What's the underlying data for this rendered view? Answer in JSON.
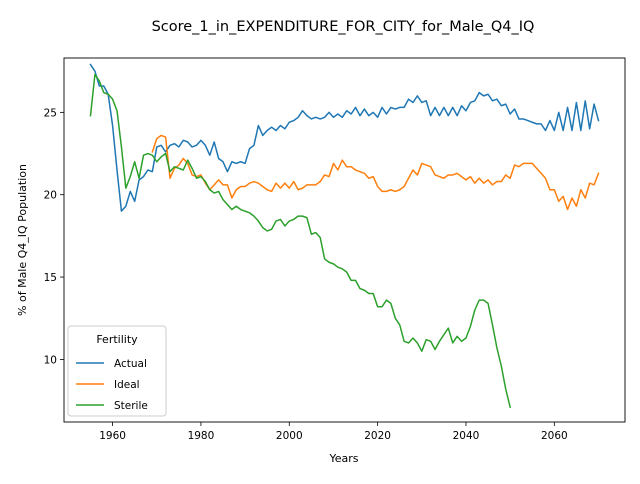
{
  "chart_data": {
    "type": "line",
    "title": "Score_1_in_EXPENDITURE_FOR_CITY_for_Male_Q4_IQ",
    "xlabel": "Years",
    "ylabel": "% of Male Q4_IQ Population",
    "xlim": [
      1949,
      2076
    ],
    "ylim": [
      6.2,
      28.3
    ],
    "xticks": [
      1960,
      1980,
      2000,
      2020,
      2040,
      2060
    ],
    "yticks": [
      10,
      15,
      20,
      25
    ],
    "grid": false,
    "legend": {
      "title": "Fertility",
      "placement": "lower-left"
    },
    "series": [
      {
        "name": "Actual",
        "color": "#1f77b4",
        "x": [
          1955,
          1956,
          1957,
          1958,
          1959,
          1960,
          1961,
          1962,
          1963,
          1964,
          1965,
          1966,
          1967,
          1968,
          1969,
          1970,
          1971,
          1972,
          1973,
          1974,
          1975,
          1976,
          1977,
          1978,
          1979,
          1980,
          1981,
          1982,
          1983,
          1984,
          1985,
          1986,
          1987,
          1988,
          1989,
          1990,
          1991,
          1992,
          1993,
          1994,
          1995,
          1996,
          1997,
          1998,
          1999,
          2000,
          2001,
          2002,
          2003,
          2004,
          2005,
          2006,
          2007,
          2008,
          2009,
          2010,
          2011,
          2012,
          2013,
          2014,
          2015,
          2016,
          2017,
          2018,
          2019,
          2020,
          2021,
          2022,
          2023,
          2024,
          2025,
          2026,
          2027,
          2028,
          2029,
          2030,
          2031,
          2032,
          2033,
          2034,
          2035,
          2036,
          2037,
          2038,
          2039,
          2040,
          2041,
          2042,
          2043,
          2044,
          2045,
          2046,
          2047,
          2048,
          2049,
          2050,
          2051,
          2052,
          2053,
          2054,
          2055,
          2056,
          2057,
          2058,
          2059,
          2060,
          2061,
          2062,
          2063,
          2064,
          2065,
          2066,
          2067,
          2068,
          2069,
          2070
        ],
        "y": [
          27.9,
          27.5,
          26.6,
          26.6,
          26.1,
          24.2,
          21.5,
          19.0,
          19.3,
          20.2,
          19.6,
          20.9,
          21.1,
          21.5,
          21.4,
          22.9,
          23.0,
          22.6,
          23.0,
          23.1,
          22.9,
          23.3,
          23.2,
          22.9,
          23.0,
          23.3,
          23.0,
          22.4,
          23.2,
          22.2,
          22.0,
          21.4,
          22.0,
          21.9,
          22.0,
          21.9,
          22.8,
          23.0,
          24.2,
          23.6,
          23.9,
          24.1,
          23.9,
          24.2,
          24.0,
          24.4,
          24.5,
          24.7,
          25.1,
          24.8,
          24.6,
          24.7,
          24.6,
          24.7,
          25.0,
          24.7,
          24.9,
          24.7,
          25.1,
          24.9,
          25.3,
          24.8,
          25.2,
          24.8,
          25.0,
          24.7,
          25.3,
          24.9,
          25.3,
          25.2,
          25.3,
          25.3,
          25.8,
          25.6,
          26.0,
          25.6,
          25.7,
          24.8,
          25.3,
          24.8,
          25.3,
          24.8,
          25.3,
          24.8,
          25.4,
          25.1,
          25.6,
          25.7,
          26.2,
          26.0,
          26.1,
          25.7,
          25.8,
          25.4,
          25.5,
          24.9,
          25.2,
          24.6,
          24.6,
          24.5,
          24.4,
          24.3,
          24.3,
          23.9,
          24.5,
          23.9,
          25.0,
          23.9,
          25.3,
          23.9,
          25.6,
          23.9,
          25.7,
          24.0,
          25.5,
          24.5
        ]
      },
      {
        "name": "Ideal",
        "color": "#ff7f0e",
        "x": [
          1969,
          1970,
          1971,
          1972,
          1973,
          1974,
          1975,
          1976,
          1977,
          1978,
          1979,
          1980,
          1981,
          1982,
          1983,
          1984,
          1985,
          1986,
          1987,
          1988,
          1989,
          1990,
          1991,
          1992,
          1993,
          1994,
          1995,
          1996,
          1997,
          1998,
          1999,
          2000,
          2001,
          2002,
          2003,
          2004,
          2005,
          2006,
          2007,
          2008,
          2009,
          2010,
          2011,
          2012,
          2013,
          2014,
          2015,
          2016,
          2017,
          2018,
          2019,
          2020,
          2021,
          2022,
          2023,
          2024,
          2025,
          2026,
          2027,
          2028,
          2029,
          2030,
          2031,
          2032,
          2033,
          2034,
          2035,
          2036,
          2037,
          2038,
          2039,
          2040,
          2041,
          2042,
          2043,
          2044,
          2045,
          2046,
          2047,
          2048,
          2049,
          2050,
          2051,
          2052,
          2053,
          2054,
          2055,
          2056,
          2057,
          2058,
          2059,
          2060,
          2061,
          2062,
          2063,
          2064,
          2065,
          2066,
          2067,
          2068,
          2069,
          2070
        ],
        "y": [
          22.6,
          23.4,
          23.6,
          23.5,
          21.0,
          21.6,
          21.8,
          22.2,
          21.9,
          21.2,
          21.1,
          21.2,
          20.7,
          20.3,
          20.6,
          20.9,
          20.6,
          20.6,
          19.8,
          20.3,
          20.5,
          20.5,
          20.7,
          20.8,
          20.7,
          20.5,
          20.3,
          20.2,
          20.7,
          20.4,
          20.7,
          20.4,
          20.8,
          20.3,
          20.4,
          20.6,
          20.6,
          20.6,
          20.8,
          21.2,
          21.1,
          21.9,
          21.5,
          22.1,
          21.7,
          21.7,
          21.5,
          21.4,
          21.3,
          21.0,
          21.1,
          20.5,
          20.2,
          20.2,
          20.3,
          20.2,
          20.3,
          20.5,
          21.0,
          21.5,
          21.2,
          21.9,
          21.8,
          21.7,
          21.2,
          21.1,
          21.0,
          21.2,
          21.2,
          21.3,
          21.1,
          20.9,
          21.1,
          20.7,
          21.0,
          20.7,
          20.9,
          20.6,
          20.8,
          20.8,
          21.2,
          21.0,
          21.8,
          21.7,
          21.9,
          21.9,
          21.9,
          21.6,
          21.3,
          21.0,
          20.3,
          20.3,
          19.6,
          19.9,
          19.1,
          19.8,
          19.3,
          20.3,
          19.8,
          20.7,
          20.6,
          21.3
        ]
      },
      {
        "name": "Sterile",
        "color": "#2ca02c",
        "x": [
          1955,
          1956,
          1957,
          1958,
          1959,
          1960,
          1961,
          1962,
          1963,
          1964,
          1965,
          1966,
          1967,
          1968,
          1969,
          1970,
          1971,
          1972,
          1973,
          1974,
          1975,
          1976,
          1977,
          1978,
          1979,
          1980,
          1981,
          1982,
          1983,
          1984,
          1985,
          1986,
          1987,
          1988,
          1989,
          1990,
          1991,
          1992,
          1993,
          1994,
          1995,
          1996,
          1997,
          1998,
          1999,
          2000,
          2001,
          2002,
          2003,
          2004,
          2005,
          2006,
          2007,
          2008,
          2009,
          2010,
          2011,
          2012,
          2013,
          2014,
          2015,
          2016,
          2017,
          2018,
          2019,
          2020,
          2021,
          2022,
          2023,
          2024,
          2025,
          2026,
          2027,
          2028,
          2029,
          2030,
          2031,
          2032,
          2033,
          2034,
          2035,
          2036,
          2037,
          2038,
          2039,
          2040,
          2041,
          2042,
          2043,
          2044,
          2045,
          2046,
          2047,
          2048,
          2049,
          2050
        ],
        "y": [
          24.8,
          27.3,
          26.9,
          26.2,
          26.1,
          25.8,
          25.1,
          22.9,
          20.4,
          21.1,
          22.0,
          21.0,
          22.4,
          22.5,
          22.4,
          22.0,
          22.3,
          22.5,
          21.4,
          21.7,
          21.6,
          21.5,
          22.1,
          21.6,
          21.0,
          21.1,
          20.8,
          20.3,
          20.1,
          20.2,
          19.7,
          19.4,
          19.1,
          19.3,
          19.1,
          19.0,
          18.9,
          18.7,
          18.4,
          18.0,
          17.8,
          17.9,
          18.4,
          18.5,
          18.1,
          18.4,
          18.5,
          18.7,
          18.7,
          18.6,
          17.6,
          17.7,
          17.4,
          16.1,
          15.9,
          15.8,
          15.6,
          15.5,
          15.3,
          14.8,
          14.8,
          14.3,
          14.2,
          14.0,
          14.0,
          13.2,
          13.2,
          13.6,
          13.4,
          12.5,
          12.1,
          11.1,
          11.0,
          11.3,
          11.0,
          10.5,
          11.2,
          11.1,
          10.6,
          11.1,
          11.5,
          11.9,
          11.0,
          11.4,
          11.1,
          11.3,
          12.0,
          13.0,
          13.6,
          13.6,
          13.4,
          12.1,
          10.7,
          9.6,
          8.2,
          7.1
        ]
      }
    ]
  }
}
